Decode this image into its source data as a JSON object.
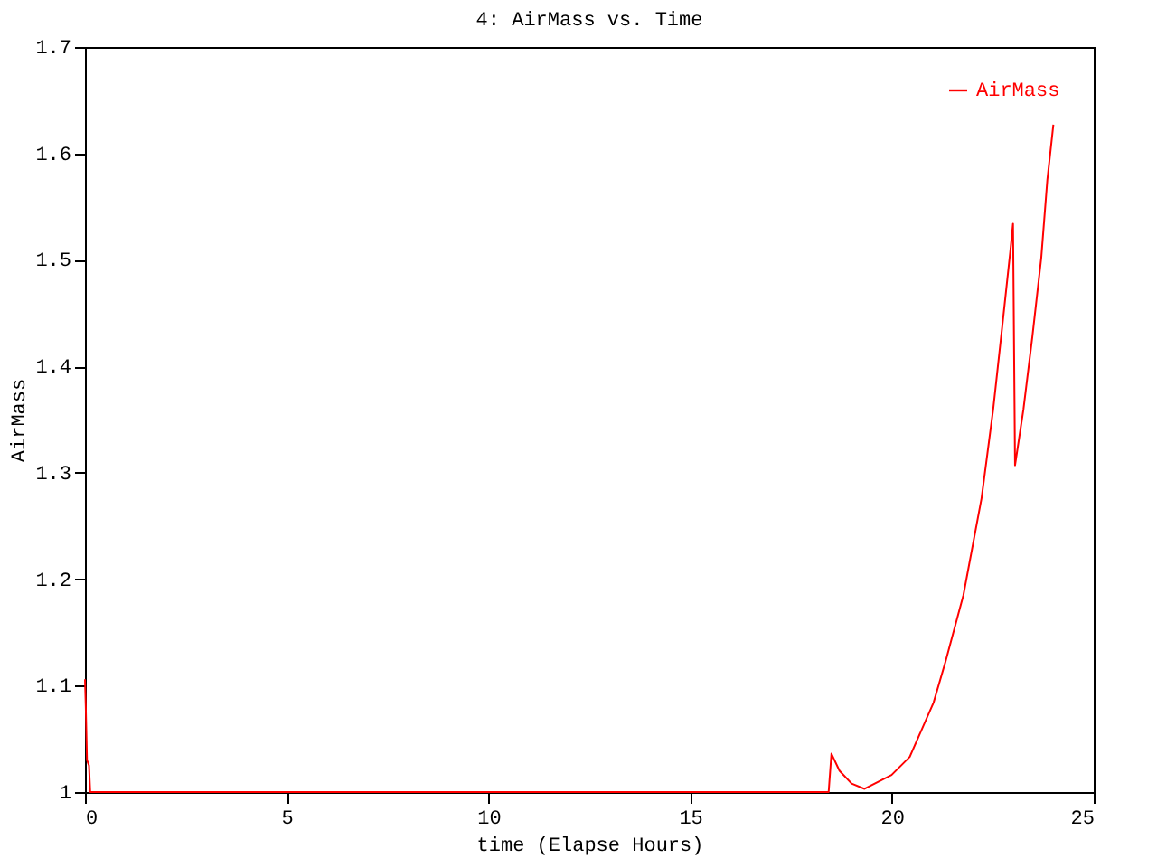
{
  "chart_data": {
    "type": "line",
    "title": "4: AirMass vs. Time",
    "xlabel": "time (Elapse Hours)",
    "ylabel": "AirMass",
    "x": [
      0,
      0.02,
      0.05,
      0.1,
      0.13,
      18.43,
      18.5,
      18.7,
      19.0,
      19.32,
      19.99,
      20.44,
      21.03,
      21.33,
      21.77,
      22.22,
      22.51,
      22.74,
      22.93,
      23.0,
      23.05,
      23.26,
      23.48,
      23.7,
      23.85,
      24.0
    ],
    "series": [
      {
        "name": "AirMass",
        "color": "#ff0000",
        "values": [
          1.106,
          1.08,
          1.03,
          1.025,
          1.0,
          1.0,
          1.036,
          1.02,
          1.008,
          1.003,
          1.016,
          1.033,
          1.084,
          1.123,
          1.185,
          1.276,
          1.36,
          1.44,
          1.507,
          1.534,
          1.307,
          1.36,
          1.428,
          1.502,
          1.575,
          1.627
        ]
      }
    ],
    "xlim": [
      0,
      25
    ],
    "xticks": [
      0,
      5,
      10,
      15,
      20,
      25
    ],
    "ylim": [
      1,
      1.7
    ],
    "yticks": [
      1,
      1.1,
      1.2,
      1.3,
      1.4,
      1.5,
      1.6,
      1.7
    ],
    "grid": false,
    "legend": "top right",
    "line_style": "solid"
  }
}
